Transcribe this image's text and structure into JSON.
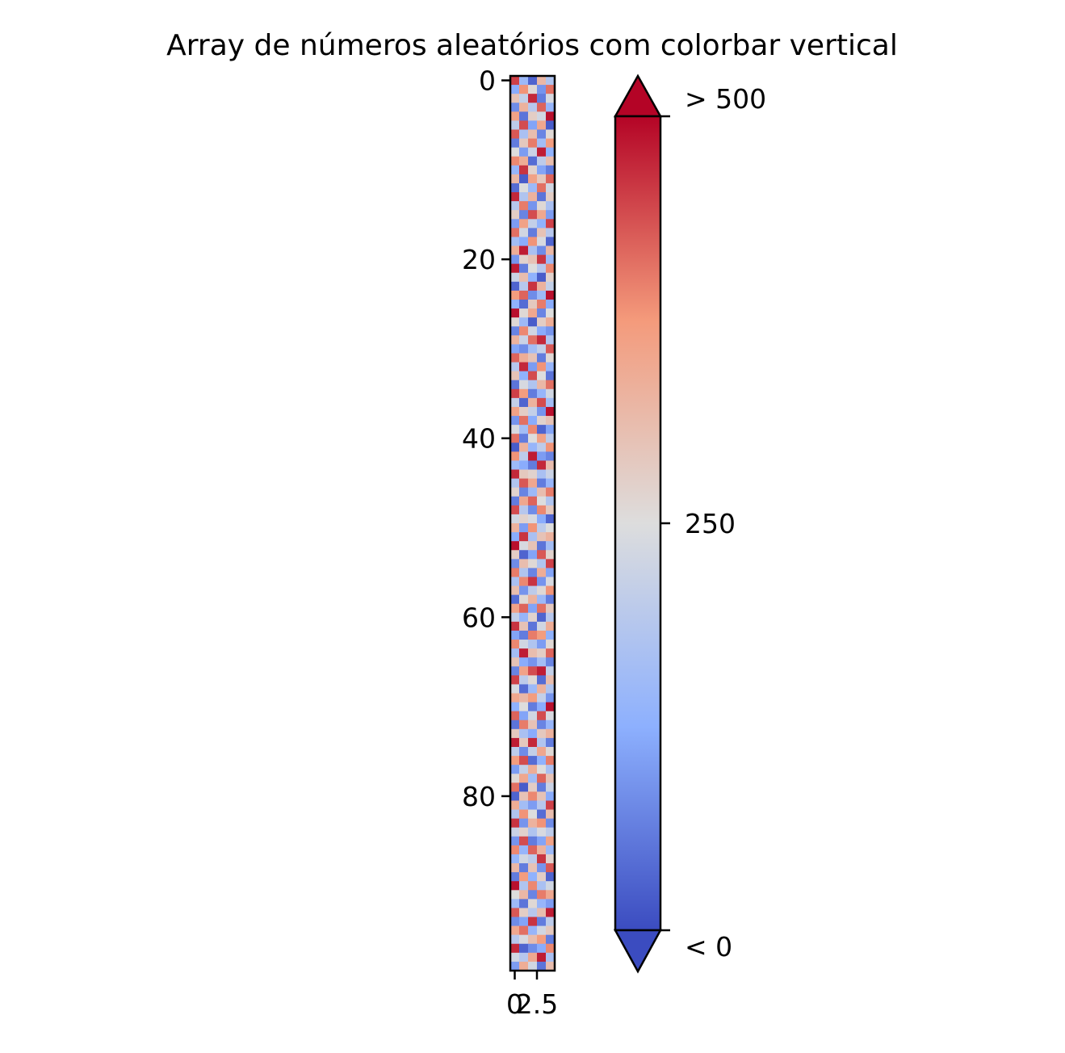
{
  "chart_data": {
    "type": "heatmap",
    "title": "Array de números aleatórios com colorbar vertical",
    "xlabel": "",
    "ylabel": "",
    "grid": false,
    "colormap": "coolwarm",
    "rows": 100,
    "cols": 5,
    "x_ticks": [
      0,
      2.5
    ],
    "x_tick_labels": [
      "0",
      "2.5"
    ],
    "y_ticks": [
      0,
      20,
      40,
      60,
      80
    ],
    "y_tick_labels": [
      "0",
      "20",
      "40",
      "60",
      "80"
    ],
    "ylim": [
      99.5,
      -0.5
    ],
    "xlim": [
      -0.5,
      4.5
    ],
    "values": [
      [
        450,
        150,
        30,
        320,
        180
      ],
      [
        120,
        380,
        260,
        90,
        410
      ],
      [
        300,
        210,
        470,
        60,
        240
      ],
      [
        80,
        330,
        190,
        420,
        140
      ],
      [
        360,
        50,
        280,
        230,
        490
      ],
      [
        200,
        440,
        110,
        350,
        20
      ],
      [
        430,
        170,
        310,
        70,
        260
      ],
      [
        60,
        290,
        400,
        160,
        370
      ],
      [
        250,
        100,
        220,
        480,
        130
      ],
      [
        390,
        340,
        40,
        200,
        310
      ],
      [
        140,
        460,
        270,
        110,
        60
      ],
      [
        320,
        20,
        360,
        290,
        420
      ],
      [
        40,
        250,
        150,
        410,
        230
      ],
      [
        470,
        180,
        330,
        50,
        280
      ],
      [
        190,
        400,
        90,
        260,
        170
      ],
      [
        280,
        70,
        440,
        350,
        100
      ],
      [
        100,
        360,
        210,
        130,
        450
      ],
      [
        410,
        230,
        60,
        300,
        190
      ],
      [
        160,
        120,
        380,
        240,
        30
      ],
      [
        340,
        480,
        170,
        80,
        320
      ],
      [
        90,
        270,
        300,
        460,
        150
      ],
      [
        480,
        60,
        250,
        190,
        390
      ],
      [
        220,
        310,
        130,
        20,
        270
      ],
      [
        30,
        190,
        460,
        330,
        210
      ],
      [
        370,
        420,
        80,
        150,
        490
      ],
      [
        130,
        40,
        290,
        400,
        120
      ],
      [
        490,
        260,
        350,
        70,
        250
      ],
      [
        260,
        150,
        20,
        280,
        340
      ],
      [
        70,
        390,
        230,
        120,
        90
      ],
      [
        330,
        220,
        410,
        470,
        180
      ],
      [
        110,
        80,
        160,
        210,
        430
      ],
      [
        420,
        340,
        300,
        60,
        260
      ],
      [
        190,
        470,
        100,
        380,
        140
      ],
      [
        300,
        130,
        440,
        250,
        50
      ],
      [
        50,
        240,
        180,
        320,
        410
      ],
      [
        450,
        370,
        60,
        140,
        230
      ],
      [
        210,
        30,
        330,
        440,
        160
      ],
      [
        360,
        280,
        210,
        90,
        490
      ],
      [
        90,
        410,
        120,
        270,
        300
      ],
      [
        240,
        160,
        390,
        30,
        110
      ],
      [
        410,
        60,
        250,
        360,
        200
      ],
      [
        20,
        330,
        140,
        200,
        380
      ],
      [
        380,
        200,
        480,
        100,
        70
      ],
      [
        150,
        120,
        60,
        470,
        310
      ],
      [
        470,
        290,
        270,
        170,
        220
      ],
      [
        180,
        430,
        350,
        60,
        140
      ],
      [
        270,
        70,
        150,
        310,
        400
      ],
      [
        60,
        350,
        420,
        250,
        180
      ],
      [
        440,
        190,
        80,
        390,
        290
      ],
      [
        230,
        270,
        240,
        120,
        30
      ],
      [
        330,
        100,
        380,
        200,
        250
      ],
      [
        120,
        460,
        170,
        300,
        330
      ],
      [
        490,
        240,
        300,
        50,
        160
      ],
      [
        280,
        30,
        110,
        430,
        270
      ],
      [
        80,
        310,
        260,
        180,
        450
      ],
      [
        400,
        180,
        70,
        340,
        110
      ],
      [
        170,
        390,
        460,
        90,
        240
      ],
      [
        310,
        90,
        200,
        260,
        380
      ],
      [
        40,
        260,
        330,
        150,
        60
      ],
      [
        360,
        420,
        110,
        410,
        290
      ],
      [
        210,
        140,
        270,
        30,
        190
      ],
      [
        460,
        300,
        50,
        230,
        340
      ],
      [
        110,
        60,
        400,
        370,
        130
      ],
      [
        390,
        230,
        180,
        100,
        260
      ],
      [
        160,
        480,
        310,
        280,
        420
      ],
      [
        300,
        120,
        90,
        160,
        70
      ],
      [
        70,
        360,
        440,
        480,
        210
      ],
      [
        450,
        200,
        260,
        40,
        310
      ],
      [
        240,
        40,
        150,
        330,
        180
      ],
      [
        350,
        320,
        370,
        210,
        90
      ],
      [
        130,
        250,
        60,
        120,
        490
      ],
      [
        420,
        110,
        230,
        440,
        240
      ],
      [
        50,
        400,
        300,
        70,
        140
      ],
      [
        290,
        170,
        120,
        290,
        330
      ],
      [
        480,
        290,
        470,
        180,
        60
      ],
      [
        200,
        80,
        210,
        350,
        260
      ],
      [
        370,
        440,
        40,
        130,
        400
      ],
      [
        100,
        210,
        340,
        250,
        170
      ],
      [
        260,
        350,
        160,
        420,
        300
      ],
      [
        410,
        20,
        280,
        60,
        220
      ],
      [
        30,
        300,
        390,
        300,
        120
      ],
      [
        340,
        160,
        100,
        190,
        450
      ],
      [
        180,
        380,
        250,
        40,
        310
      ],
      [
        460,
        90,
        330,
        380,
        80
      ],
      [
        220,
        270,
        180,
        240,
        200
      ],
      [
        90,
        440,
        60,
        110,
        360
      ],
      [
        390,
        140,
        420,
        330,
        150
      ],
      [
        140,
        230,
        200,
        460,
        270
      ],
      [
        320,
        60,
        300,
        90,
        430
      ],
      [
        60,
        370,
        130,
        280,
        30
      ],
      [
        490,
        180,
        390,
        170,
        230
      ],
      [
        250,
        320,
        70,
        400,
        350
      ],
      [
        150,
        50,
        260,
        140,
        100
      ],
      [
        430,
        280,
        190,
        310,
        480
      ],
      [
        80,
        110,
        460,
        60,
        200
      ],
      [
        350,
        410,
        140,
        230,
        290
      ],
      [
        190,
        240,
        310,
        370,
        60
      ],
      [
        470,
        30,
        80,
        120,
        390
      ],
      [
        230,
        190,
        350,
        480,
        170
      ],
      [
        100,
        340,
        230,
        50,
        310
      ]
    ],
    "colorbar": {
      "orientation": "vertical",
      "extend": "both",
      "vmin": 0,
      "vmax": 500,
      "ticks": [
        0,
        250,
        500
      ],
      "tick_labels": [
        "< 0",
        "250",
        "> 500"
      ],
      "color_low": "#3b4cc0",
      "color_mid": "#dddddd",
      "color_high": "#b40426"
    }
  }
}
